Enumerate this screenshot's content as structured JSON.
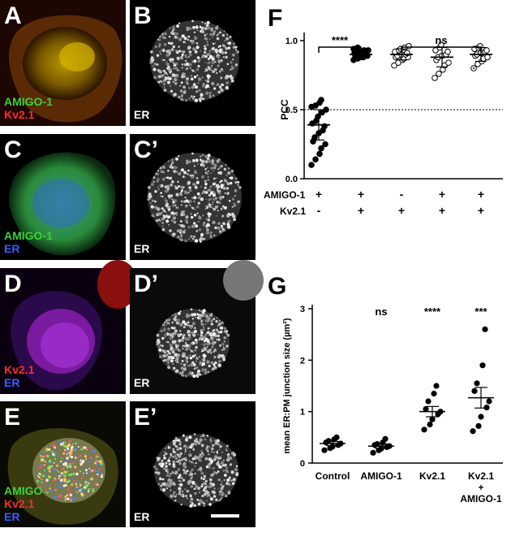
{
  "panels": {
    "A": {
      "label": "A",
      "channels": [
        {
          "text": "AMIGO-1",
          "color": "#3bd13b"
        },
        {
          "text": "Kv2.1",
          "color": "#ff2a2a"
        }
      ]
    },
    "B": {
      "label": "B",
      "channels": [
        {
          "text": "ER",
          "color": "#ffffff"
        }
      ]
    },
    "C": {
      "label": "C",
      "channels": [
        {
          "text": "AMIGO-1",
          "color": "#3bd13b"
        },
        {
          "text": "ER",
          "color": "#3b5bff"
        }
      ]
    },
    "C2": {
      "label": "C’",
      "channels": [
        {
          "text": "ER",
          "color": "#ffffff"
        }
      ]
    },
    "D": {
      "label": "D",
      "channels": [
        {
          "text": "Kv2.1",
          "color": "#ff2a2a"
        },
        {
          "text": "ER",
          "color": "#3b5bff"
        }
      ]
    },
    "D2": {
      "label": "D’",
      "channels": [
        {
          "text": "ER",
          "color": "#ffffff"
        }
      ]
    },
    "E": {
      "label": "E",
      "channels": [
        {
          "text": "AMIGO",
          "color": "#3bd13b"
        },
        {
          "text": "Kv2.1",
          "color": "#ff2a2a"
        },
        {
          "text": "ER",
          "color": "#3b5bff"
        }
      ]
    },
    "E2": {
      "label": "E’",
      "channels": [
        {
          "text": "ER",
          "color": "#ffffff"
        }
      ]
    },
    "F": {
      "label": "F"
    },
    "G": {
      "label": "G"
    }
  },
  "chart_data": [
    {
      "type": "scatter",
      "title": "",
      "ylabel": "PCC",
      "ylim": [
        0,
        1.0
      ],
      "yticks": [
        "0.0",
        "0.5",
        "1.0"
      ],
      "reference_line": 0.5,
      "row_labels": [
        "AMIGO-1",
        "Kv2.1"
      ],
      "conditions": [
        {
          "amigo": "+",
          "kv": "-",
          "mean": 0.39,
          "sd": 0.11,
          "filled": true,
          "points": [
            0.1,
            0.14,
            0.18,
            0.22,
            0.25,
            0.27,
            0.3,
            0.33,
            0.35,
            0.38,
            0.4,
            0.42,
            0.45,
            0.48,
            0.5,
            0.52,
            0.53,
            0.55,
            0.57
          ]
        },
        {
          "amigo": "+",
          "kv": "+",
          "mean": 0.9,
          "sd": 0.025,
          "filled": true,
          "points": [
            0.86,
            0.87,
            0.88,
            0.88,
            0.89,
            0.89,
            0.9,
            0.9,
            0.9,
            0.91,
            0.91,
            0.92,
            0.92,
            0.93,
            0.93,
            0.94,
            0.95
          ]
        },
        {
          "amigo": "-",
          "kv": "+",
          "mean": 0.9,
          "sd": 0.04,
          "filled": false,
          "points": [
            0.82,
            0.84,
            0.86,
            0.87,
            0.88,
            0.88,
            0.89,
            0.9,
            0.9,
            0.91,
            0.92,
            0.93,
            0.94,
            0.95,
            0.96
          ]
        },
        {
          "amigo": "+",
          "kv": "+",
          "mean": 0.88,
          "sd": 0.07,
          "filled": false,
          "points": [
            0.73,
            0.76,
            0.79,
            0.82,
            0.84,
            0.86,
            0.88,
            0.89,
            0.9,
            0.92,
            0.93,
            0.95,
            0.97
          ]
        },
        {
          "amigo": "+",
          "kv": "+",
          "mean": 0.9,
          "sd": 0.05,
          "filled": false,
          "dotted_center": true,
          "points": [
            0.8,
            0.83,
            0.85,
            0.87,
            0.88,
            0.89,
            0.9,
            0.91,
            0.92,
            0.93,
            0.94,
            0.95,
            0.96
          ]
        }
      ],
      "annotations": [
        {
          "between": [
            0,
            1
          ],
          "text": "****"
        },
        {
          "between": [
            2,
            4
          ],
          "text": "ns"
        }
      ]
    },
    {
      "type": "scatter",
      "title": "",
      "ylabel": "mean ER:PM junction size (µm²)",
      "ylim": [
        0,
        3
      ],
      "yticks": [
        "0",
        "1",
        "2",
        "3"
      ],
      "categories": [
        "Control",
        "AMIGO-1",
        "Kv2.1",
        "Kv2.1\n+\nAMIGO-1"
      ],
      "series": [
        {
          "mean": 0.38,
          "sem": 0.04,
          "points": [
            0.25,
            0.29,
            0.32,
            0.35,
            0.38,
            0.4,
            0.43,
            0.46,
            0.5
          ],
          "sig": ""
        },
        {
          "mean": 0.33,
          "sem": 0.04,
          "points": [
            0.2,
            0.25,
            0.28,
            0.31,
            0.33,
            0.35,
            0.37,
            0.4,
            0.47
          ],
          "sig": "ns"
        },
        {
          "mean": 1.0,
          "sem": 0.1,
          "points": [
            0.65,
            0.75,
            0.85,
            0.95,
            1.0,
            1.05,
            1.2,
            1.35,
            1.5
          ],
          "sig": "****"
        },
        {
          "mean": 1.27,
          "sem": 0.2,
          "points": [
            0.62,
            0.72,
            0.9,
            1.08,
            1.2,
            1.4,
            1.55,
            1.9,
            2.6
          ],
          "sig": "***"
        }
      ]
    }
  ]
}
